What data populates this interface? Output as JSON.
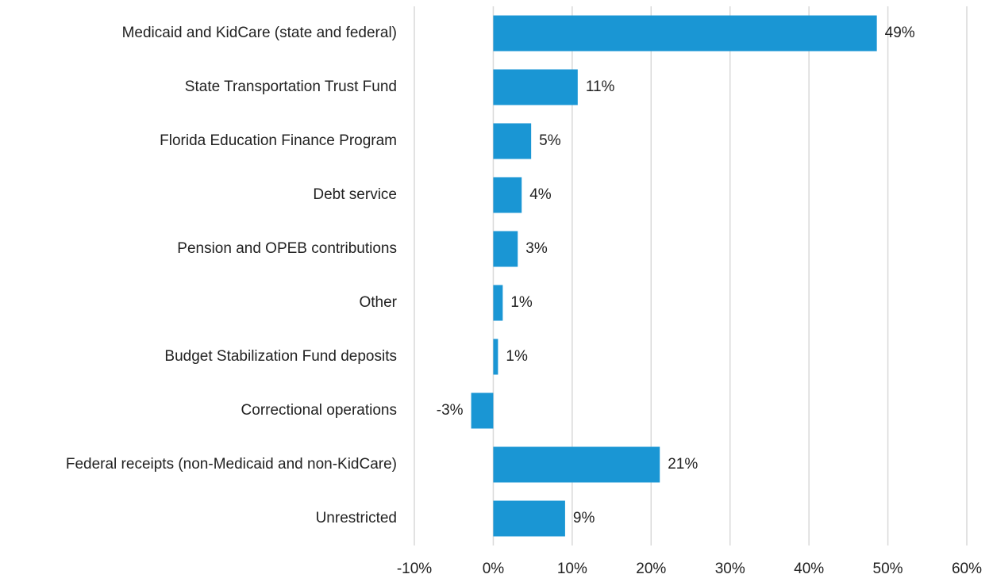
{
  "chart_data": {
    "type": "barh",
    "categories": [
      "Medicaid and KidCare (state and federal)",
      "State Transportation Trust Fund",
      "Florida Education Finance Program",
      "Debt service",
      "Pension and OPEB contributions",
      "Other",
      "Budget Stabilization Fund deposits",
      "Correctional operations",
      "Federal receipts (non-Medicaid and non-KidCare)",
      "Unrestricted"
    ],
    "values": [
      48.6,
      10.7,
      4.8,
      3.6,
      3.1,
      1.2,
      0.6,
      -2.8,
      21.1,
      9.1
    ],
    "value_labels": [
      "49%",
      "11%",
      "5%",
      "4%",
      "3%",
      "1%",
      "1%",
      "-3%",
      "21%",
      "9%"
    ],
    "color": "#1a96d4",
    "xlim": [
      -10,
      60
    ],
    "xticks": [
      {
        "value": -10,
        "label": "-10%"
      },
      {
        "value": 0,
        "label": "0%"
      },
      {
        "value": 10,
        "label": "10%"
      },
      {
        "value": 20,
        "label": "20%"
      },
      {
        "value": 30,
        "label": "30%"
      },
      {
        "value": 40,
        "label": "40%"
      },
      {
        "value": 50,
        "label": "50%"
      },
      {
        "value": 60,
        "label": "60%"
      }
    ],
    "grid": true
  }
}
